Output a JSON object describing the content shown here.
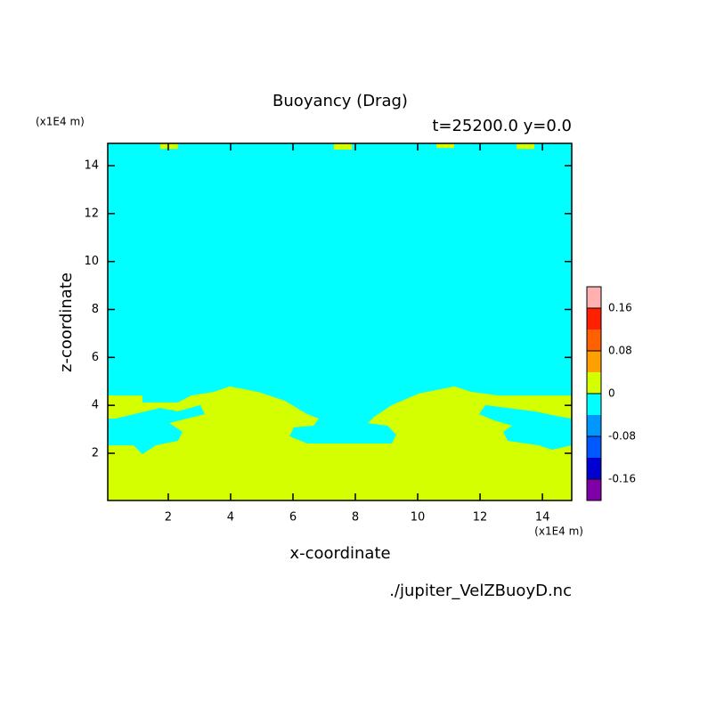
{
  "chart_data": {
    "type": "contour",
    "title": "Buoyancy (Drag)",
    "subtitle": "t=25200.0 y=0.0",
    "y_unit": "(x1E4 m)",
    "x_unit": "(x1E4 m)",
    "xlabel": "x-coordinate",
    "ylabel": "z-coordinate",
    "footer": "./jupiter_VelZBuoyD.nc",
    "xlim": [
      0.06,
      14.94
    ],
    "ylim": [
      0.03,
      14.93
    ],
    "xticks": [
      2,
      4,
      6,
      8,
      10,
      12,
      14
    ],
    "yticks": [
      2,
      4,
      6,
      8,
      10,
      12,
      14
    ],
    "levels": [
      -0.2,
      -0.16,
      -0.12,
      -0.08,
      -0.04,
      0,
      0.04,
      0.08,
      0.12,
      0.16,
      0.2
    ],
    "colors": [
      "#8000a8",
      "#0000d0",
      "#0058ff",
      "#0098ff",
      "#00ffff",
      "#d4ff00",
      "#ffa000",
      "#ff6000",
      "#ff2000",
      "#ffb0b0"
    ],
    "colorbar_ticks": [
      0.16,
      0.08,
      0,
      -0.08,
      -0.16
    ],
    "background_band": [
      -0.04,
      0
    ],
    "regions": [
      {
        "band": [
          0,
          0.04
        ],
        "x": [
          0.06,
          1.17,
          1.17,
          2.31,
          2.74,
          3.46,
          3.97,
          4.89,
          5.74,
          6.46,
          6.83,
          6.66,
          6.03,
          5.89,
          6.46,
          9.17,
          9.31,
          9.03,
          8.4,
          8.6,
          9.17,
          10.03,
          11.17,
          11.74,
          12.6,
          13.74,
          14.94,
          14.94,
          0.06
        ],
        "z": [
          4.41,
          4.41,
          4.12,
          4.12,
          4.41,
          4.56,
          4.79,
          4.56,
          4.19,
          3.63,
          3.45,
          3.15,
          3.08,
          2.71,
          2.41,
          2.41,
          2.78,
          3.15,
          3.26,
          3.52,
          4.01,
          4.49,
          4.79,
          4.56,
          4.41,
          4.41,
          4.41,
          0.03,
          0.03
        ]
      },
      {
        "band": [
          -0.04,
          0
        ],
        "x": [
          0.06,
          0.06,
          0.89,
          1.17,
          1.6,
          2.31,
          2.46,
          2.03,
          2.6,
          3.17,
          3.03,
          2.31,
          1.74,
          0.89,
          0.31
        ],
        "z": [
          3.45,
          2.33,
          2.33,
          1.96,
          2.33,
          2.52,
          2.89,
          3.26,
          3.45,
          3.63,
          4.01,
          3.75,
          3.89,
          3.63,
          3.45
        ]
      },
      {
        "band": [
          -0.04,
          0
        ],
        "x": [
          14.94,
          14.94,
          14.31,
          13.89,
          12.89,
          12.74,
          13.03,
          12.46,
          11.97,
          12.17,
          12.89,
          13.74,
          14.6
        ],
        "z": [
          3.45,
          2.33,
          2.15,
          2.33,
          2.52,
          2.89,
          3.15,
          3.37,
          3.63,
          4.01,
          3.89,
          3.75,
          3.52
        ]
      },
      {
        "band": [
          0,
          0.04
        ],
        "x": [
          1.74,
          2.31,
          2.31,
          1.74
        ],
        "z": [
          14.93,
          14.93,
          14.7,
          14.7
        ]
      },
      {
        "band": [
          0,
          0.04
        ],
        "x": [
          7.31,
          7.89,
          7.89,
          7.31
        ],
        "z": [
          14.93,
          14.93,
          14.67,
          14.67
        ]
      },
      {
        "band": [
          0,
          0.04
        ],
        "x": [
          10.6,
          11.17,
          11.17,
          10.6
        ],
        "z": [
          14.93,
          14.93,
          14.74,
          14.74
        ]
      },
      {
        "band": [
          0,
          0.04
        ],
        "x": [
          13.17,
          13.74,
          13.74,
          13.17
        ],
        "z": [
          14.93,
          14.93,
          14.7,
          14.7
        ]
      }
    ]
  }
}
